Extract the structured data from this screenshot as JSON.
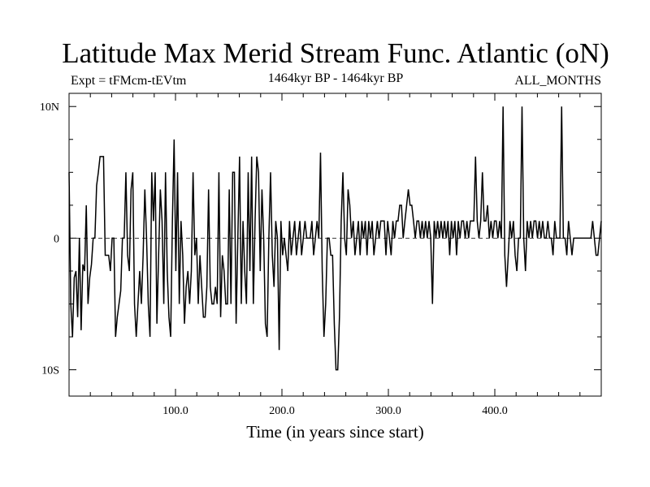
{
  "chart_data": {
    "type": "line",
    "title": "Latitude Max Merid Stream Func. Atlantic (oN)",
    "subtitle_left": "Expt = tFMcm-tEVtm",
    "subtitle_center": "1464kyr BP - 1464kyr BP",
    "subtitle_right": "ALL_MONTHS",
    "xlabel": "Time (in years since start)",
    "ylabel": "",
    "xlim": [
      0,
      500
    ],
    "ylim": [
      -12,
      11
    ],
    "x_ticks": [
      100,
      200,
      300,
      400
    ],
    "x_tick_labels": [
      "100.0",
      "200.0",
      "300.0",
      "400.0"
    ],
    "y_ticks": [
      10,
      0,
      -10
    ],
    "y_tick_labels": [
      "10N",
      "0",
      "10S"
    ],
    "zero_line": "dashed",
    "series": [
      {
        "name": "latitude",
        "values": [
          5,
          -5,
          -7.5,
          -3,
          -2.5,
          -6,
          0,
          -7,
          -2,
          -2.5,
          2.5,
          -5,
          -3,
          -2,
          0,
          0,
          4,
          5,
          6.2,
          6.2,
          6.2,
          -1.3,
          -1.3,
          -1.3,
          -2.5,
          0,
          0,
          -7.5,
          -6,
          -5,
          -4,
          0,
          0,
          5,
          -1.3,
          -2.5,
          3.7,
          5,
          -5,
          -7.5,
          -5,
          -2.5,
          -5,
          -1.3,
          3.7,
          0,
          -5,
          -7.5,
          5,
          1.3,
          5,
          -6.5,
          -1.3,
          3.7,
          1.3,
          -5,
          5,
          -2.5,
          -6,
          -7.5,
          1.3,
          7.5,
          -2.5,
          5,
          -5,
          1.3,
          -1.3,
          -6.5,
          -3.7,
          -2.5,
          -5,
          -2.5,
          5,
          -1.3,
          0,
          -5,
          -1.3,
          -3.7,
          -6,
          -6,
          -3.7,
          3.7,
          -3.7,
          -5,
          -5,
          -3.7,
          -5,
          5,
          -6,
          -1.3,
          -2.5,
          -5,
          -5,
          3.7,
          -5,
          5,
          5,
          -6.5,
          0,
          6.2,
          -5,
          1.3,
          -2.5,
          -5,
          5,
          -2.5,
          6.2,
          -5,
          1.3,
          6.2,
          5,
          -2.5,
          3.7,
          0,
          -6.5,
          -7.5,
          0,
          5,
          -1.3,
          -3.7,
          1.3,
          0,
          -8.5,
          1.3,
          -1.3,
          0,
          -1.3,
          -2.5,
          1.3,
          -1.3,
          0,
          1.3,
          -1.3,
          0,
          1.3,
          -1.3,
          0,
          1.3,
          0,
          0,
          0,
          1.3,
          -1.3,
          0,
          1.3,
          0,
          6.5,
          -2.5,
          -7.5,
          -5,
          0,
          0,
          -1.3,
          -1.3,
          -6.5,
          -10,
          -10,
          -6,
          1.3,
          5,
          0,
          -1.3,
          3.7,
          2.5,
          0,
          1.3,
          -1.3,
          0,
          1.3,
          -1.3,
          1.3,
          0,
          1.3,
          -1.3,
          1.3,
          0,
          1.3,
          -1.3,
          0,
          1.3,
          0,
          1.3,
          1.3,
          1.3,
          -1.3,
          1.3,
          0,
          -1.3,
          1.3,
          0,
          1.3,
          1.3,
          2.5,
          2.5,
          0,
          1.3,
          2.5,
          3.7,
          2.5,
          2.5,
          1.3,
          0,
          1.3,
          1.3,
          0,
          1.3,
          0,
          1.3,
          0,
          1.3,
          0,
          -5,
          1.3,
          0,
          1.3,
          0,
          1.3,
          0,
          1.3,
          0,
          1.3,
          -1.3,
          1.3,
          0,
          1.3,
          -1.3,
          1.3,
          0,
          1.3,
          1.3,
          0,
          1.3,
          0,
          1.3,
          1.3,
          1.3,
          6.2,
          1.3,
          0,
          1.3,
          5,
          1.3,
          1.3,
          2.5,
          0,
          1.3,
          0,
          1.3,
          1.3,
          0,
          1.3,
          0,
          10,
          -1.3,
          -3.7,
          -1.3,
          1.3,
          0,
          1.3,
          -1.3,
          -2.5,
          0,
          0,
          10,
          0,
          -2.5,
          1.3,
          0,
          1.3,
          0,
          1.3,
          1.3,
          0,
          1.3,
          0,
          1.3,
          0,
          0,
          1.3,
          0,
          0,
          -1.3,
          1.3,
          0,
          0,
          0,
          10,
          0,
          0,
          -1.3,
          1.3,
          0,
          -1.3,
          0,
          0,
          0,
          0,
          0,
          0,
          0,
          0,
          0,
          0,
          0,
          1.3,
          0,
          -1.3,
          -1.3,
          0,
          1.3
        ]
      }
    ]
  }
}
